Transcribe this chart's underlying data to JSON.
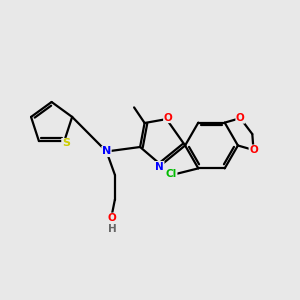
{
  "background_color": "#e8e8e8",
  "bond_color": "#000000",
  "atom_colors": {
    "N": "#0000ff",
    "O": "#ff0000",
    "S": "#cccc00",
    "Cl": "#00bb00",
    "H": "#666666",
    "C": "#000000"
  },
  "figsize": [
    3.0,
    3.0
  ],
  "dpi": 100
}
